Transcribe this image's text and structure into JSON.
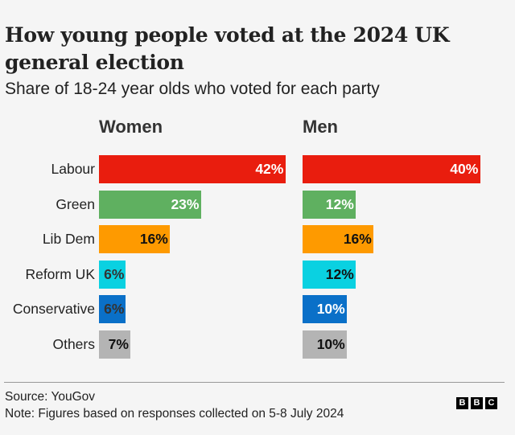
{
  "title": "How young people voted at the 2024 UK general election",
  "subtitle": "Share of 18-24 year olds who voted for each party",
  "footer": {
    "source": "Source: YouGov",
    "note": "Note: Figures based on responses collected on 5-8 July 2024",
    "logo_letters": [
      "B",
      "B",
      "C"
    ]
  },
  "chart_data": {
    "type": "bar",
    "orientation": "horizontal",
    "title": "How young people voted at the 2024 UK general election",
    "subtitle": "Share of 18-24 year olds who voted for each party",
    "categories": [
      "Labour",
      "Green",
      "Lib Dem",
      "Reform UK",
      "Conservative",
      "Others"
    ],
    "colors": [
      "#e91d0e",
      "#5fb060",
      "#fe9a00",
      "#0ad1e1",
      "#0a70c8",
      "#b4b4b4"
    ],
    "label_colors": {
      "Women": [
        "#ffffff",
        "#ffffff",
        "#111111",
        "#333333",
        "#333333",
        "#111111"
      ],
      "Men": [
        "#ffffff",
        "#ffffff",
        "#111111",
        "#111111",
        "#ffffff",
        "#111111"
      ]
    },
    "series": [
      {
        "name": "Women",
        "values": [
          42,
          23,
          16,
          6,
          6,
          7
        ],
        "labels": [
          "42%",
          "23%",
          "16%",
          "6%",
          "6%",
          "7%"
        ]
      },
      {
        "name": "Men",
        "values": [
          40,
          12,
          16,
          12,
          10,
          10
        ],
        "labels": [
          "40%",
          "12%",
          "16%",
          "12%",
          "10%",
          "10%"
        ]
      }
    ],
    "unit": "%",
    "xlabel": "",
    "ylabel": "",
    "grid": false,
    "legend": "none"
  }
}
